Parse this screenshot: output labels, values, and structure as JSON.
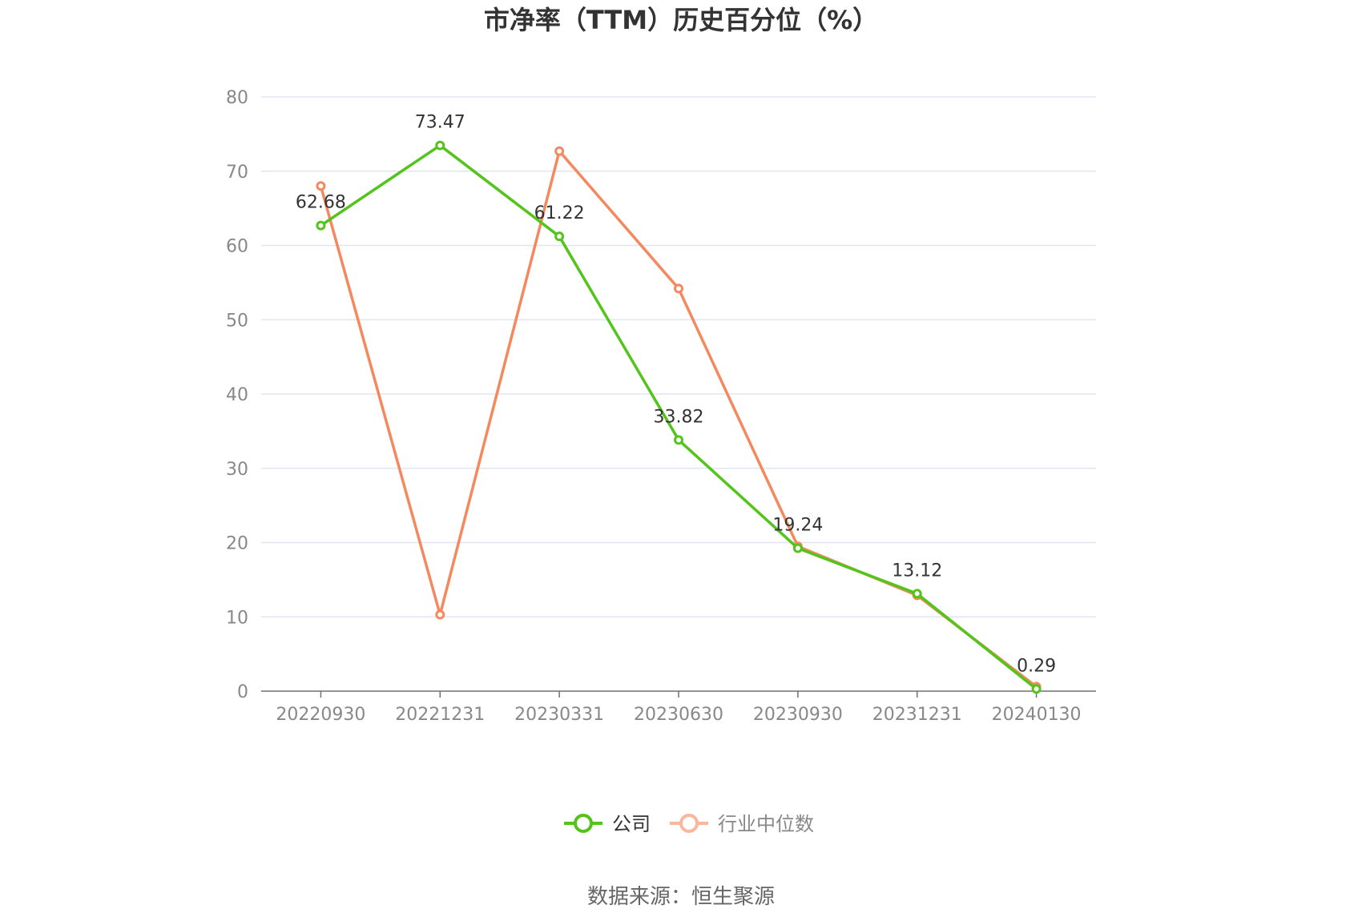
{
  "chart_data": {
    "type": "line",
    "title": "市净率（TTM）历史百分位（%）",
    "xlabel": "",
    "ylabel": "",
    "categories": [
      "20220930",
      "20221231",
      "20230331",
      "20230630",
      "20230930",
      "20231231",
      "20240130"
    ],
    "ylim": [
      0,
      80
    ],
    "yticks": [
      0,
      10,
      20,
      30,
      40,
      50,
      60,
      70,
      80
    ],
    "grid": true,
    "legend_position": "bottom",
    "series": [
      {
        "name": "公司",
        "color": "#52c41a",
        "values": [
          62.68,
          73.47,
          61.22,
          33.82,
          19.24,
          13.12,
          0.29
        ],
        "data_labels": [
          "62.68",
          "73.47",
          "61.22",
          "33.82",
          "19.24",
          "13.12",
          "0.29"
        ]
      },
      {
        "name": "行业中位数",
        "color": "#f4895f",
        "values": [
          68.0,
          10.3,
          72.7,
          54.2,
          19.5,
          12.9,
          0.6
        ]
      }
    ],
    "legend_inactive_color": "#f9b89d"
  },
  "source": "数据来源：恒生聚源"
}
